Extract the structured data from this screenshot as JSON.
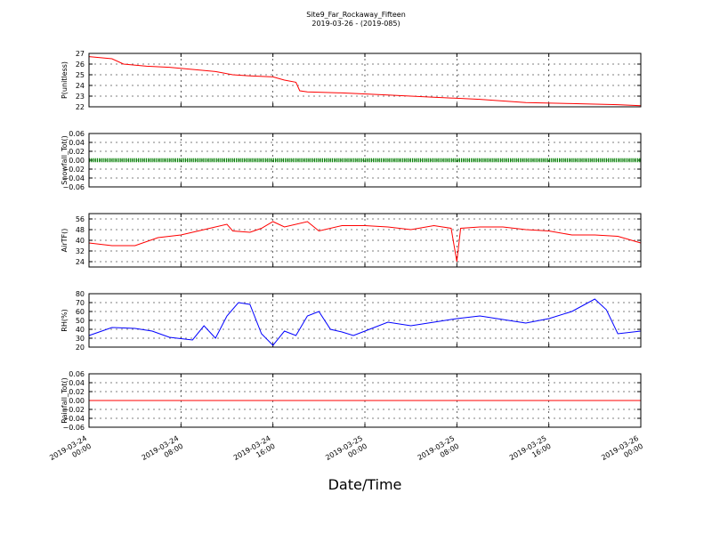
{
  "title": "Site9_Far_Rockaway_Fifteen",
  "subtitle": "2019-03-26 - (2019-085)",
  "xlabel": "Date/Time",
  "x_ticks": [
    {
      "line1": "2019-03-24",
      "line2": "00:00"
    },
    {
      "line1": "2019-03-24",
      "line2": "08:00"
    },
    {
      "line1": "2019-03-24",
      "line2": "16:00"
    },
    {
      "line1": "2019-03-25",
      "line2": "00:00"
    },
    {
      "line1": "2019-03-25",
      "line2": "08:00"
    },
    {
      "line1": "2019-03-25",
      "line2": "16:00"
    },
    {
      "line1": "2019-03-26",
      "line2": "00:00"
    }
  ],
  "chart_data": [
    {
      "type": "line",
      "ylabel": "P(unitless)",
      "ylim": [
        22,
        27
      ],
      "yticks": [
        "22",
        "23",
        "24",
        "25",
        "26",
        "27"
      ],
      "grid": true,
      "series": [
        {
          "color": "#ff0000",
          "x": [
            "2019-03-24 00:00",
            "2019-03-24 02:00",
            "2019-03-24 03:00",
            "2019-03-24 05:00",
            "2019-03-24 07:00",
            "2019-03-24 09:00",
            "2019-03-24 11:00",
            "2019-03-24 12:30",
            "2019-03-24 14:00",
            "2019-03-24 16:00",
            "2019-03-24 17:00",
            "2019-03-24 18:00",
            "2019-03-24 18:20",
            "2019-03-24 19:00",
            "2019-03-24 22:00",
            "2019-03-25 02:00",
            "2019-03-25 06:00",
            "2019-03-25 10:00",
            "2019-03-25 14:00",
            "2019-03-25 18:00",
            "2019-03-25 22:00",
            "2019-03-26 00:00"
          ],
          "y": [
            26.7,
            26.5,
            26.0,
            25.8,
            25.7,
            25.5,
            25.3,
            25.0,
            24.9,
            24.8,
            24.5,
            24.3,
            23.5,
            23.4,
            23.3,
            23.1,
            22.9,
            22.7,
            22.4,
            22.3,
            22.2,
            22.1
          ]
        }
      ]
    },
    {
      "type": "line",
      "ylabel": "Snowfall_Tot()",
      "ylim": [
        -0.06,
        0.06
      ],
      "yticks": [
        "−0.06",
        "−0.04",
        "−0.02",
        "0.00",
        "0.02",
        "0.04",
        "0.06"
      ],
      "grid": true,
      "series": [
        {
          "color": "#008000",
          "marker": "point",
          "x": [
            "2019-03-24 00:00",
            "2019-03-26 00:00"
          ],
          "y": [
            0.0,
            0.0
          ]
        }
      ]
    },
    {
      "type": "line",
      "ylabel": "AirTF()",
      "ylim": [
        20,
        60
      ],
      "yticks": [
        "24",
        "32",
        "40",
        "48",
        "56"
      ],
      "grid": true,
      "series": [
        {
          "color": "#ff0000",
          "x": [
            "2019-03-24 00:00",
            "2019-03-24 02:00",
            "2019-03-24 04:00",
            "2019-03-24 06:00",
            "2019-03-24 08:00",
            "2019-03-24 10:00",
            "2019-03-24 12:00",
            "2019-03-24 12:30",
            "2019-03-24 14:00",
            "2019-03-24 15:00",
            "2019-03-24 16:00",
            "2019-03-24 17:00",
            "2019-03-24 19:00",
            "2019-03-24 20:00",
            "2019-03-24 22:00",
            "2019-03-25 00:00",
            "2019-03-25 02:00",
            "2019-03-25 04:00",
            "2019-03-25 06:00",
            "2019-03-25 07:30",
            "2019-03-25 08:00",
            "2019-03-25 08:20",
            "2019-03-25 10:00",
            "2019-03-25 12:00",
            "2019-03-25 14:00",
            "2019-03-25 16:00",
            "2019-03-25 18:00",
            "2019-03-25 20:00",
            "2019-03-25 22:00",
            "2019-03-26 00:00"
          ],
          "y": [
            38,
            36,
            36,
            42,
            44,
            48,
            52,
            47,
            46,
            49,
            54,
            50,
            54,
            47,
            51,
            51,
            50,
            48,
            51,
            49,
            24,
            49,
            50,
            50,
            48,
            47,
            44,
            44,
            43,
            38
          ]
        }
      ]
    },
    {
      "type": "line",
      "ylabel": "RH(%)",
      "ylim": [
        20,
        80
      ],
      "yticks": [
        "20",
        "30",
        "40",
        "50",
        "60",
        "70",
        "80"
      ],
      "grid": true,
      "series": [
        {
          "color": "#0000ff",
          "x": [
            "2019-03-24 00:00",
            "2019-03-24 02:00",
            "2019-03-24 04:00",
            "2019-03-24 05:30",
            "2019-03-24 07:00",
            "2019-03-24 09:00",
            "2019-03-24 10:00",
            "2019-03-24 11:00",
            "2019-03-24 12:00",
            "2019-03-24 13:00",
            "2019-03-24 14:00",
            "2019-03-24 15:00",
            "2019-03-24 16:00",
            "2019-03-24 17:00",
            "2019-03-24 18:00",
            "2019-03-24 19:00",
            "2019-03-24 20:00",
            "2019-03-24 21:00",
            "2019-03-24 22:00",
            "2019-03-24 23:00",
            "2019-03-25 00:00",
            "2019-03-25 02:00",
            "2019-03-25 04:00",
            "2019-03-25 06:00",
            "2019-03-25 08:00",
            "2019-03-25 10:00",
            "2019-03-25 12:00",
            "2019-03-25 14:00",
            "2019-03-25 16:00",
            "2019-03-25 18:00",
            "2019-03-25 20:00",
            "2019-03-25 21:00",
            "2019-03-25 22:00",
            "2019-03-26 00:00"
          ],
          "y": [
            33,
            42,
            41,
            38,
            31,
            28,
            44,
            30,
            55,
            70,
            68,
            35,
            22,
            38,
            33,
            55,
            60,
            40,
            37,
            33,
            38,
            48,
            44,
            48,
            52,
            55,
            51,
            47,
            52,
            60,
            74,
            62,
            35,
            38
          ]
        }
      ]
    },
    {
      "type": "line",
      "ylabel": "Rainfall_Tot()",
      "ylim": [
        -0.06,
        0.06
      ],
      "yticks": [
        "−0.06",
        "−0.04",
        "−0.02",
        "0.00",
        "0.02",
        "0.04",
        "0.06"
      ],
      "grid": true,
      "series": [
        {
          "color": "#ff0000",
          "x": [
            "2019-03-24 00:00",
            "2019-03-26 00:00"
          ],
          "y": [
            0.0,
            0.0
          ]
        }
      ]
    }
  ]
}
